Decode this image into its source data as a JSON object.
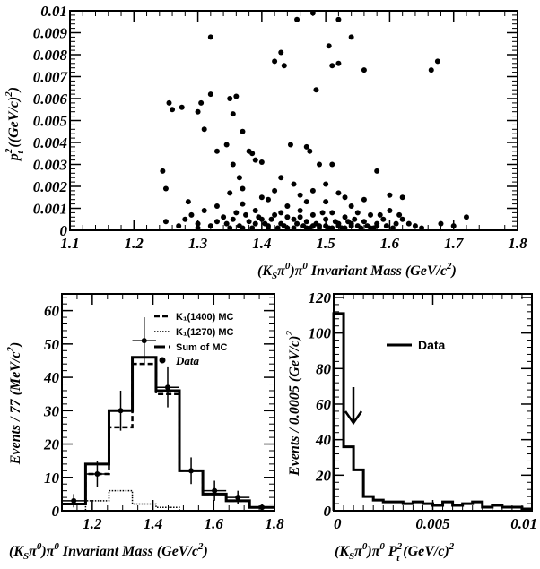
{
  "chart_data": [
    {
      "type": "scatter",
      "panel": "top",
      "title": "",
      "xlabel": "(K_Sπ^0)π^0 Invariant Mass (GeV/c^2)",
      "ylabel": "p_t^2 ((GeV/c)^2)",
      "xlim": [
        1.1,
        1.8
      ],
      "ylim": [
        0,
        0.01
      ],
      "x_ticks": [
        "1.1",
        "1.2",
        "1.3",
        "1.4",
        "1.5",
        "1.6",
        "1.7",
        "1.8"
      ],
      "y_ticks": [
        "0",
        "0.001",
        "0.002",
        "0.003",
        "0.004",
        "0.005",
        "0.006",
        "0.007",
        "0.008",
        "0.009",
        "0.01"
      ],
      "points": [
        [
          1.245,
          0.0027
        ],
        [
          1.25,
          0.0019
        ],
        [
          1.255,
          0.0058
        ],
        [
          1.26,
          0.0055
        ],
        [
          1.275,
          0.0056
        ],
        [
          1.3,
          0.0054
        ],
        [
          1.305,
          0.0058
        ],
        [
          1.32,
          0.0062
        ],
        [
          1.32,
          0.0088
        ],
        [
          1.31,
          0.0046
        ],
        [
          1.33,
          0.0036
        ],
        [
          1.35,
          0.006
        ],
        [
          1.355,
          0.0053
        ],
        [
          1.36,
          0.0061
        ],
        [
          1.345,
          0.0039
        ],
        [
          1.355,
          0.003
        ],
        [
          1.365,
          0.0024
        ],
        [
          1.37,
          0.0045
        ],
        [
          1.38,
          0.0036
        ],
        [
          1.385,
          0.0035
        ],
        [
          1.39,
          0.0032
        ],
        [
          1.4,
          0.0031
        ],
        [
          1.42,
          0.0077
        ],
        [
          1.43,
          0.0081
        ],
        [
          1.435,
          0.0075
        ],
        [
          1.445,
          0.0039
        ],
        [
          1.455,
          0.0096
        ],
        [
          1.47,
          0.0038
        ],
        [
          1.475,
          0.0036
        ],
        [
          1.48,
          0.0099
        ],
        [
          1.485,
          0.0064
        ],
        [
          1.49,
          0.003
        ],
        [
          1.505,
          0.0084
        ],
        [
          1.51,
          0.0075
        ],
        [
          1.52,
          0.0076
        ],
        [
          1.52,
          0.0096
        ],
        [
          1.51,
          0.003
        ],
        [
          1.54,
          0.0088
        ],
        [
          1.56,
          0.0073
        ],
        [
          1.58,
          0.0027
        ],
        [
          1.665,
          0.0073
        ],
        [
          1.675,
          0.0077
        ],
        [
          1.43,
          0.0024
        ],
        [
          1.45,
          0.0021
        ],
        [
          1.5,
          0.0021
        ],
        [
          1.52,
          0.0017
        ],
        [
          1.56,
          0.0014
        ],
        [
          1.6,
          0.0016
        ],
        [
          1.285,
          0.0013
        ],
        [
          1.33,
          0.0011
        ],
        [
          1.37,
          0.0012
        ],
        [
          1.41,
          0.0014
        ],
        [
          1.44,
          0.0011
        ],
        [
          1.47,
          0.0013
        ],
        [
          1.54,
          0.0011
        ],
        [
          1.62,
          0.0015
        ],
        [
          1.29,
          0.0007
        ],
        [
          1.3,
          0.0003
        ],
        [
          1.31,
          0.0009
        ],
        [
          1.34,
          0.0006
        ],
        [
          1.35,
          0.0001
        ],
        [
          1.36,
          0.0008
        ],
        [
          1.38,
          0.0004
        ],
        [
          1.39,
          0.0009
        ],
        [
          1.4,
          0.0005
        ],
        [
          1.41,
          0.0002
        ],
        [
          1.42,
          0.0007
        ],
        [
          1.43,
          0.0003
        ],
        [
          1.44,
          0.0006
        ],
        [
          1.45,
          0.0001
        ],
        [
          1.46,
          0.0009
        ],
        [
          1.47,
          0.0004
        ],
        [
          1.48,
          0.0007
        ],
        [
          1.49,
          0.0002
        ],
        [
          1.5,
          0.0005
        ],
        [
          1.51,
          0.0008
        ],
        [
          1.52,
          0.0003
        ],
        [
          1.53,
          0.0006
        ],
        [
          1.54,
          0.0002
        ],
        [
          1.55,
          0.0008
        ],
        [
          1.56,
          0.0004
        ],
        [
          1.57,
          0.0007
        ],
        [
          1.58,
          0.0003
        ],
        [
          1.59,
          0.0005
        ],
        [
          1.6,
          0.0009
        ],
        [
          1.61,
          0.0003
        ],
        [
          1.62,
          0.0005
        ],
        [
          1.64,
          0.0002
        ],
        [
          1.65,
          0.0001
        ],
        [
          1.68,
          0.0003
        ],
        [
          1.7,
          0.0002
        ],
        [
          1.72,
          0.0006
        ],
        [
          1.25,
          0.0004
        ],
        [
          1.27,
          0.0002
        ],
        [
          1.28,
          0.0005
        ],
        [
          1.3,
          0.0001
        ],
        [
          1.32,
          0.0002
        ],
        [
          1.33,
          0.0004
        ],
        [
          1.37,
          0.0001
        ],
        [
          1.39,
          0.0003
        ],
        [
          1.41,
          0.0001
        ],
        [
          1.43,
          0.0008
        ],
        [
          1.45,
          0.0005
        ],
        [
          1.465,
          0.0002
        ],
        [
          1.475,
          0.0001
        ],
        [
          1.485,
          0.0003
        ],
        [
          1.495,
          0.0008
        ],
        [
          1.505,
          0.0001
        ],
        [
          1.515,
          0.0004
        ],
        [
          1.525,
          0.0001
        ],
        [
          1.535,
          0.0004
        ],
        [
          1.545,
          0.0005
        ],
        [
          1.555,
          0.0001
        ],
        [
          1.565,
          0.0002
        ],
        [
          1.575,
          0.0001
        ],
        [
          1.585,
          0.0007
        ],
        [
          1.595,
          0.0002
        ],
        [
          1.605,
          0.0001
        ],
        [
          1.615,
          0.0007
        ],
        [
          1.63,
          0.0003
        ],
        [
          1.345,
          0.0003
        ],
        [
          1.355,
          0.0005
        ],
        [
          1.365,
          0.0002
        ],
        [
          1.375,
          0.0007
        ],
        [
          1.385,
          0.0001
        ],
        [
          1.395,
          0.0006
        ],
        [
          1.405,
          0.0003
        ],
        [
          1.415,
          0.0005
        ],
        [
          1.425,
          0.0001
        ],
        [
          1.435,
          0.0002
        ],
        [
          1.44,
          0.0001
        ],
        [
          1.455,
          0.0003
        ],
        [
          1.46,
          0.0006
        ],
        [
          1.47,
          0.0001
        ],
        [
          1.48,
          0.0002
        ],
        [
          1.49,
          0.0001
        ],
        [
          1.5,
          0.0002
        ],
        [
          1.51,
          0.0001
        ],
        [
          1.52,
          0.0002
        ],
        [
          1.53,
          0.0001
        ],
        [
          1.54,
          0.0003
        ],
        [
          1.55,
          0.0002
        ],
        [
          1.57,
          0.0001
        ],
        [
          1.58,
          0.0002
        ],
        [
          1.4,
          0.0015
        ],
        [
          1.42,
          0.0018
        ],
        [
          1.46,
          0.0016
        ],
        [
          1.48,
          0.0018
        ],
        [
          1.5,
          0.0013
        ],
        [
          1.53,
          0.0015
        ],
        [
          1.35,
          0.0017
        ],
        [
          1.37,
          0.0019
        ]
      ]
    },
    {
      "type": "bar",
      "panel": "bottom-left",
      "title": "",
      "xlabel": "(K_Sπ^0)π^0 Invariant Mass (GeV/c^2)",
      "ylabel": "Events / 77 (MeV/c^2)",
      "xlim": [
        1.1,
        1.8
      ],
      "ylim": [
        0,
        65
      ],
      "x_ticks": [
        "1.2",
        "1.4",
        "1.6",
        "1.8"
      ],
      "y_ticks": [
        "0",
        "10",
        "20",
        "30",
        "40",
        "50",
        "60"
      ],
      "bin_edges": [
        1.1,
        1.178,
        1.255,
        1.332,
        1.41,
        1.487,
        1.564,
        1.641,
        1.718,
        1.8
      ],
      "series": [
        {
          "name": "K1(1400) MC",
          "values": [
            2,
            11,
            25,
            44,
            35,
            12,
            5,
            3,
            1
          ]
        },
        {
          "name": "K1(1270) MC",
          "values": [
            0,
            3,
            6,
            2,
            1,
            0,
            0,
            0,
            0
          ]
        },
        {
          "name": "Sum of MC",
          "values": [
            2,
            14,
            30,
            46,
            36,
            12,
            5,
            3,
            1
          ]
        },
        {
          "name": "Data",
          "values": [
            3,
            11,
            30,
            51,
            37,
            12,
            6,
            4,
            1
          ],
          "errors": [
            2,
            4,
            6,
            7,
            6,
            4,
            3,
            2,
            1
          ]
        }
      ]
    },
    {
      "type": "bar",
      "panel": "bottom-right",
      "title": "",
      "xlabel": "(K_Sπ^0)π^0 P_t^2 (GeV/c)^2",
      "ylabel": "Events / 0.0005 (GeV/c)^2",
      "xlim": [
        0,
        0.01
      ],
      "ylim": [
        0,
        122
      ],
      "x_ticks": [
        "0",
        "0.005",
        "0.01"
      ],
      "y_ticks": [
        "0",
        "20",
        "40",
        "60",
        "80",
        "100",
        "120"
      ],
      "bin_width": 0.0005,
      "series": [
        {
          "name": "Data",
          "values": [
            111,
            36,
            23,
            8,
            6,
            5,
            5,
            4,
            5,
            4,
            3,
            5,
            3,
            4,
            5,
            2,
            3,
            2,
            2,
            1
          ]
        }
      ],
      "annotation": {
        "type": "arrow",
        "x": 0.0005
      }
    }
  ],
  "legend_bl": {
    "k1400": "K₁(1400) MC",
    "k1270": "K₁(1270) MC",
    "sum": "Sum of MC",
    "data": "Data"
  },
  "legend_br": {
    "data": "Data"
  }
}
